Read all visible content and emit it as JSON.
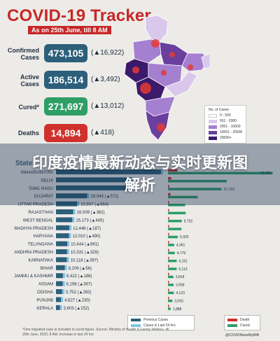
{
  "header": {
    "title": "COVID-19 Tracker",
    "subtitle": "As on 25th June, till 8 AM"
  },
  "stats": [
    {
      "label": "Confirmed Cases",
      "value": "473,105",
      "change": "(▲16,922)",
      "color": "#2c5f7a"
    },
    {
      "label": "Active Cases",
      "value": "186,514",
      "change": "(▲3,492)",
      "color": "#2c5f7a"
    },
    {
      "label": "Cured*",
      "value": "271,697",
      "change": "(▲13,012)",
      "color": "#2e9e66"
    },
    {
      "label": "Deaths",
      "value": "14,894",
      "change": "(▲418)",
      "color": "#d0312d"
    }
  ],
  "map_legend": {
    "title": "No. of Cases",
    "items": [
      {
        "label": "0 - 500",
        "color": "#ffffff"
      },
      {
        "label": "501 - 2000",
        "color": "#d9c8ec"
      },
      {
        "label": "2001 - 10000",
        "color": "#a57fd0"
      },
      {
        "label": "10001 - 20000",
        "color": "#6a3f9e"
      },
      {
        "label": "20000+",
        "color": "#3c1a6b"
      }
    ]
  },
  "banner": {
    "text": "印度疫情最新动态与实时更新图解析"
  },
  "table": {
    "header": "State"
  },
  "chart_data": {
    "type": "bar",
    "categories": [
      "MAHARASHTRA",
      "DELHI",
      "TAMIL NADU",
      "GUJARAT",
      "UTTAR PRADESH",
      "RAJASTHAN",
      "WEST BENGAL",
      "MADHYA PRADESH",
      "HARYANA",
      "TELANGANA",
      "ANDHRA PRADESH",
      "KARNATAKA",
      "BIHAR",
      "JAMMU & KASHMIR",
      "ASSAM",
      "ODISHA",
      "PUNJAB",
      "KERALA"
    ],
    "confirmed_labels": [
      "",
      "",
      "",
      "28,943 (▲572)",
      "19,557 (▲664)",
      "16,009 (▲382)",
      "15,173 (▲445)",
      "12,448 (▲187)",
      "12,010 (▲490)",
      "10,444 (▲891)",
      "10,331 (▲329)",
      "10,118 (▲397)",
      "8,209 (▲56)",
      "6,422 (▲186)",
      "6,198 (▲367)",
      "5,752 (▲282)",
      "4,627 (▲230)",
      "3,603 (▲152)"
    ],
    "confirmed": [
      142900,
      70390,
      67468,
      28943,
      19557,
      16009,
      15173,
      12448,
      12010,
      10444,
      10331,
      10118,
      8209,
      6422,
      6198,
      5752,
      4627,
      3603
    ],
    "deaths": [
      6739,
      2365,
      866,
      1735,
      596,
      379,
      606,
      525,
      188,
      225,
      124,
      170,
      56,
      90,
      9,
      17,
      120,
      22
    ],
    "cured_labels": [
      "73,792",
      "",
      "37,763",
      "",
      "",
      "",
      "9,702",
      "",
      "6,925",
      "4,361",
      "4,779",
      "6,151",
      "6,113",
      "3,818",
      "3,958",
      "4,123",
      "3,093",
      "1,888"
    ],
    "cured": [
      73792,
      41437,
      37763,
      20967,
      12116,
      12452,
      9702,
      9473,
      6925,
      4361,
      4779,
      6151,
      6113,
      3818,
      3958,
      4123,
      3093,
      1888
    ],
    "legend": [
      "Previous Cases",
      "Cases in Last 24 hrs",
      "Death",
      "Cured"
    ],
    "colors": {
      "previous": "#2c5f7a",
      "last24": "#7fc3e6",
      "death": "#d0312d",
      "cured": "#2e9e66"
    }
  },
  "footnote": "*One migrated case is included in cured figure. Source: Ministry of Health & Family Welfare, till 25th June, 2020, 8 AM. Increase in last 24 hrs",
  "credit": "@COVIDNewsByMIB"
}
